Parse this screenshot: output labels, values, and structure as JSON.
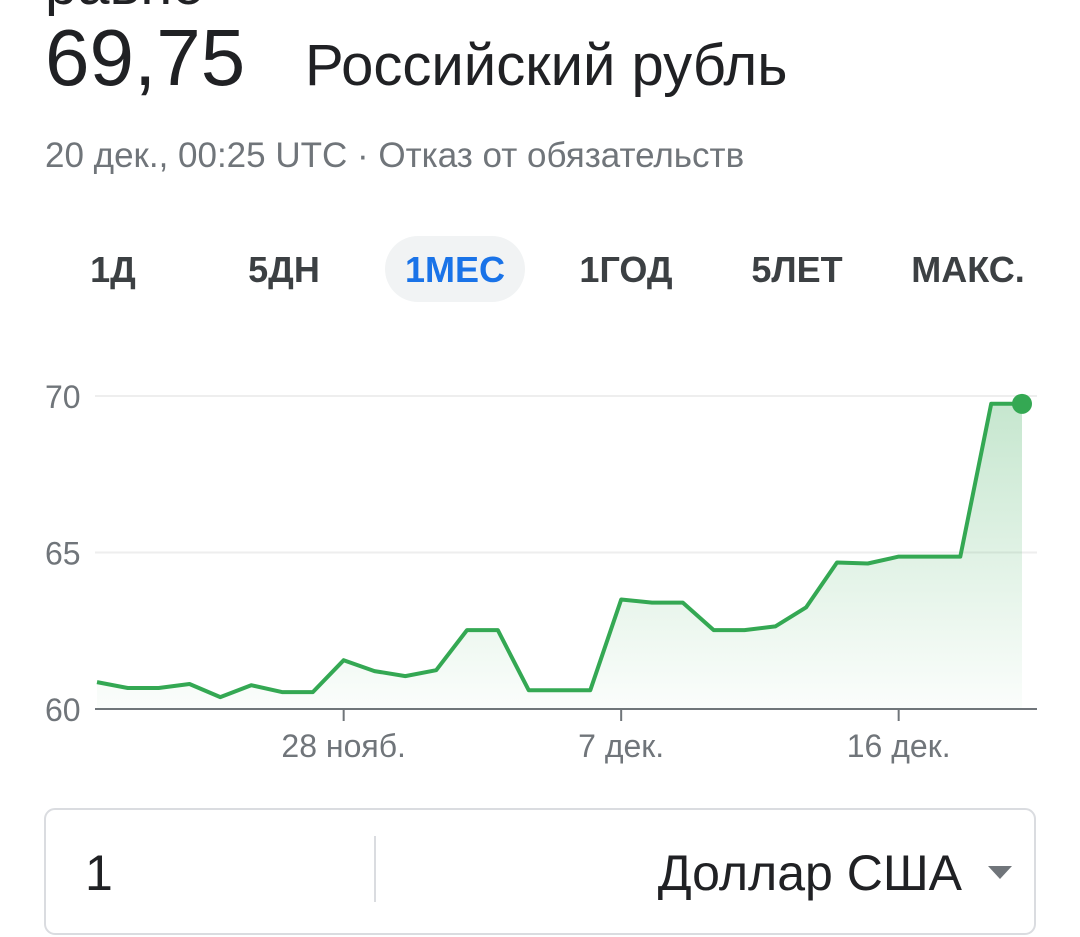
{
  "header": {
    "caption": "равно",
    "amount": "69,75",
    "currency": "Российский рубль",
    "subtitle": "20 дек., 00:25 UTC · Отказ от обязательств"
  },
  "tabs": [
    "1Д",
    "5ДН",
    "1МЕС",
    "1ГОД",
    "5ЛЕТ",
    "МАКС."
  ],
  "selected_tab": 2,
  "chart_data": {
    "type": "line",
    "categories": [
      null,
      null,
      null,
      null,
      null,
      null,
      null,
      null,
      "28 нояб.",
      null,
      null,
      null,
      null,
      null,
      null,
      null,
      null,
      "7 дек.",
      null,
      null,
      null,
      null,
      null,
      null,
      null,
      null,
      "16 дек.",
      null,
      null,
      null,
      null
    ],
    "values": [
      60.86,
      60.67,
      60.67,
      60.8,
      60.38,
      60.76,
      60.54,
      60.54,
      61.56,
      61.21,
      61.05,
      61.24,
      62.52,
      62.52,
      60.6,
      60.6,
      60.6,
      63.5,
      63.4,
      63.4,
      62.52,
      62.52,
      62.64,
      63.25,
      64.68,
      64.65,
      64.87,
      64.87,
      64.87,
      69.75,
      69.75
    ],
    "color": "#34a853",
    "ylim": [
      60,
      70
    ],
    "yticks": [
      60,
      65,
      70
    ],
    "grid": true
  },
  "converter": {
    "amount": "1",
    "currency": "Доллар США"
  }
}
